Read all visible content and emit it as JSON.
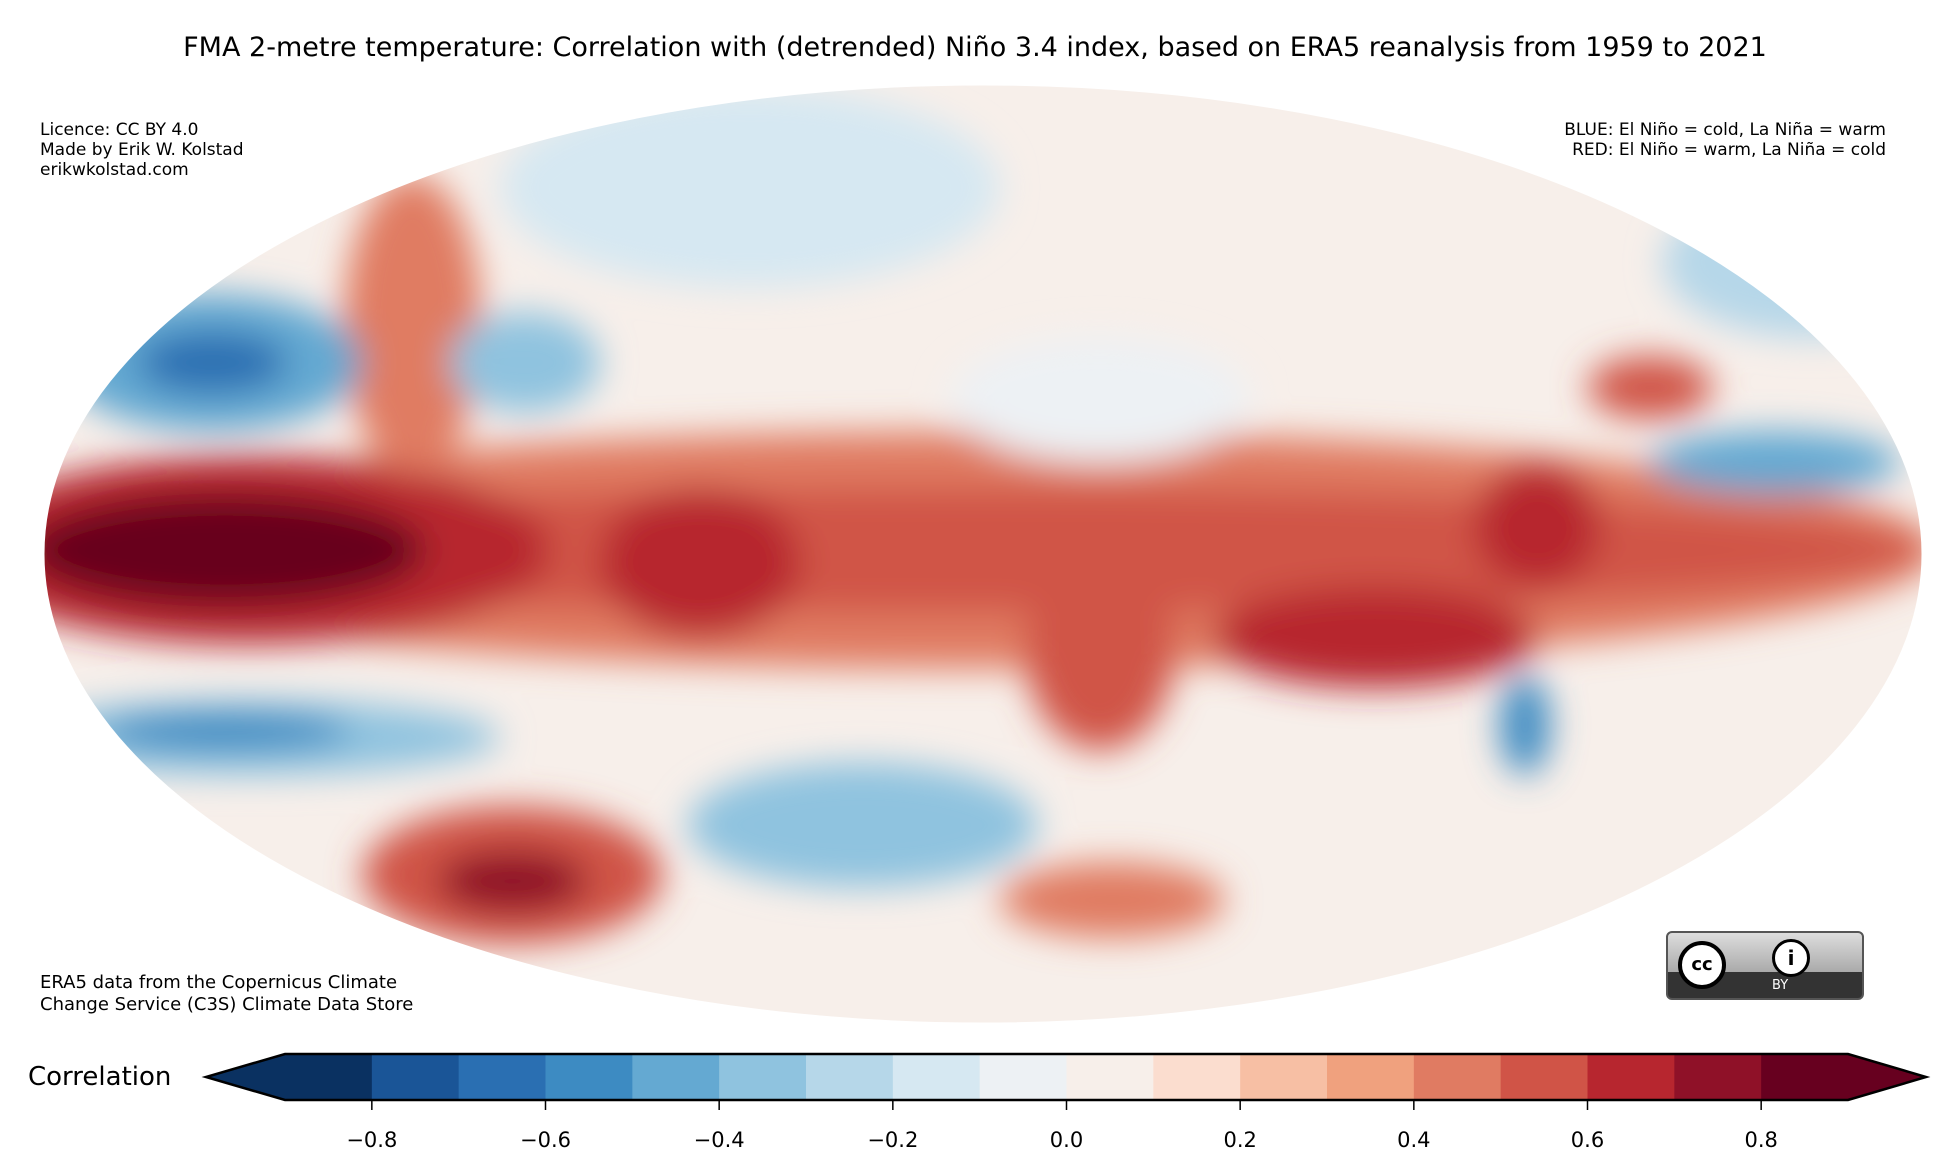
{
  "title": "FMA 2-metre temperature: Correlation with (detrended) Niño 3.4 index, based on ERA5 reanalysis from 1959 to 2021",
  "notes": {
    "licence": "Licence: CC BY 4.0\nMade by Erik W. Kolstad\nerikwkolstad.com",
    "legend_text": "BLUE: El Niño = cold, La Niña = warm\nRED: El Niño = warm, La Niña = cold",
    "source": "ERA5 data from the Copernicus Climate\nChange Service (C3S) Climate Data Store"
  },
  "badge": {
    "cc": "cc",
    "by": "BY",
    "by_icon": "i"
  },
  "chart_data": {
    "type": "heatmap",
    "projection": "mollweide",
    "title": "FMA 2-metre temperature: Correlation with (detrended) Niño 3.4 index, based on ERA5 reanalysis from 1959 to 2021",
    "colorbar": {
      "label": "Correlation",
      "range": [
        -0.9,
        0.9
      ],
      "extend": "both",
      "levels": [
        -0.9,
        -0.8,
        -0.7,
        -0.6,
        -0.5,
        -0.4,
        -0.3,
        -0.2,
        -0.1,
        0.0,
        0.1,
        0.2,
        0.3,
        0.4,
        0.5,
        0.6,
        0.7,
        0.8,
        0.9
      ],
      "colors": [
        "#0a3161",
        "#1a5597",
        "#2a6fb2",
        "#3d8bc2",
        "#64a9d2",
        "#8fc3df",
        "#b6d7e9",
        "#d6e8f2",
        "#edf1f4",
        "#f7efea",
        "#fbddcf",
        "#f7bfa4",
        "#f0a17e",
        "#e07b62",
        "#d05447",
        "#b7262f",
        "#8f1128",
        "#67001f"
      ],
      "extend_colors": [
        "#0a3161",
        "#67001f"
      ],
      "ticks": [
        -0.8,
        -0.6,
        -0.4,
        -0.2,
        0.0,
        0.2,
        0.4,
        0.6,
        0.8
      ],
      "tick_labels": [
        "−0.8",
        "−0.6",
        "−0.4",
        "−0.2",
        "0.0",
        "0.2",
        "0.4",
        "0.6",
        "0.8"
      ]
    }
  }
}
